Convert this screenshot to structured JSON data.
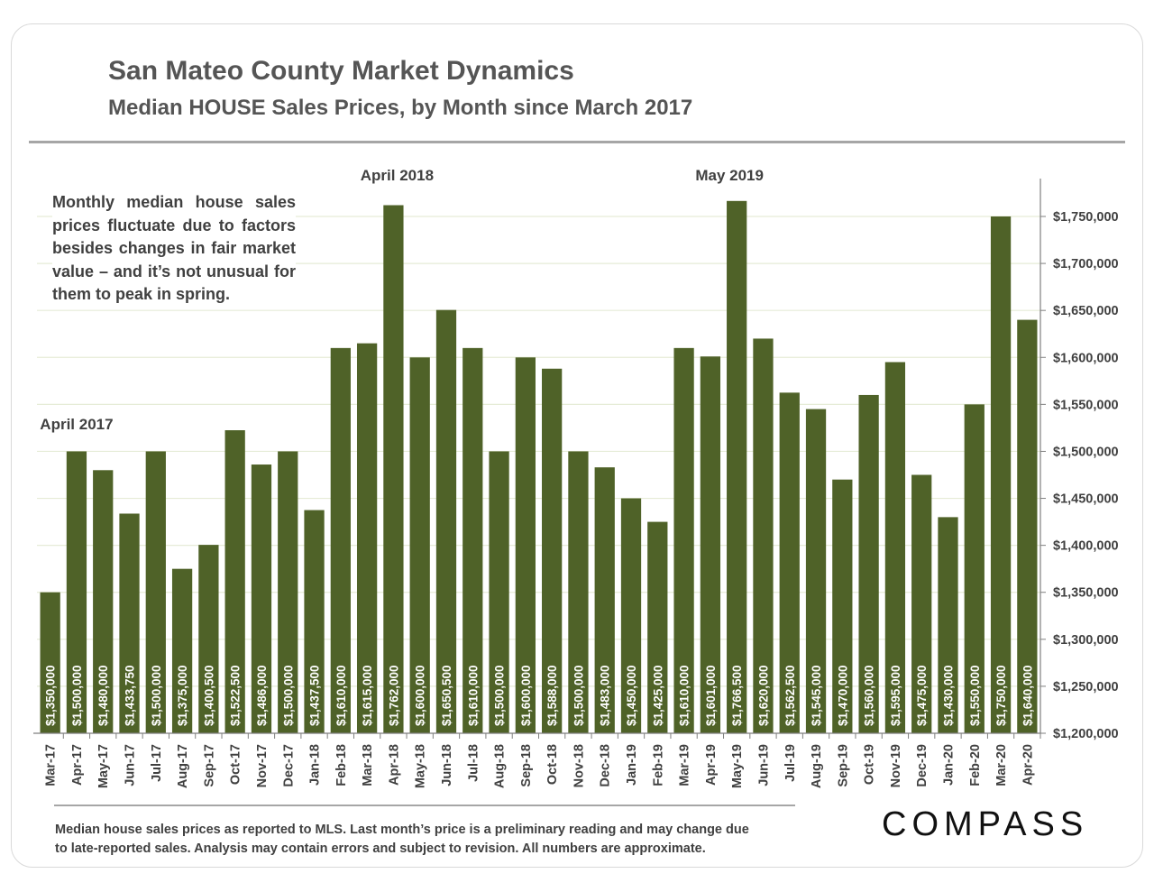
{
  "header": {
    "title": "San Mateo County Market Dynamics",
    "subtitle": "Median HOUSE Sales Prices, by Month since March 2017"
  },
  "note": "Monthly median house sales prices fluctuate due to factors besides changes in fair market value – and it’s not unusual for them to peak in spring.",
  "footnote": {
    "line1": "Median house sales prices as reported to MLS. Last month’s price is a preliminary reading and may change due",
    "line2": "to late-reported sales. Analysis may contain errors and subject to revision. All numbers are approximate."
  },
  "logo": "COMPASS",
  "colors": {
    "bar": "#4f6228",
    "text": "#404040",
    "grid": "#e6ecd7"
  },
  "chart_data": {
    "type": "bar",
    "title": "Median HOUSE Sales Prices, by Month since March 2017",
    "categories": [
      "Mar-17",
      "Apr-17",
      "May-17",
      "Jun-17",
      "Jul-17",
      "Aug-17",
      "Sep-17",
      "Oct-17",
      "Nov-17",
      "Dec-17",
      "Jan-18",
      "Feb-18",
      "Mar-18",
      "Apr-18",
      "May-18",
      "Jun-18",
      "Jul-18",
      "Aug-18",
      "Sep-18",
      "Oct-18",
      "Nov-18",
      "Dec-18",
      "Jan-19",
      "Feb-19",
      "Mar-19",
      "Apr-19",
      "May-19",
      "Jun-19",
      "Jul-19",
      "Aug-19",
      "Sep-19",
      "Oct-19",
      "Nov-19",
      "Dec-19",
      "Jan-20",
      "Feb-20",
      "Mar-20",
      "Apr-20"
    ],
    "values": [
      1350000,
      1500000,
      1480000,
      1433750,
      1500000,
      1375000,
      1400500,
      1522500,
      1486000,
      1500000,
      1437500,
      1610000,
      1615000,
      1762000,
      1600000,
      1650500,
      1610000,
      1500000,
      1600000,
      1588000,
      1500000,
      1483000,
      1450000,
      1425000,
      1610000,
      1601000,
      1766500,
      1620000,
      1562500,
      1545000,
      1470000,
      1560000,
      1595000,
      1475000,
      1430000,
      1550000,
      1750000,
      1640000
    ],
    "data_labels": [
      "$1,350,000",
      "$1,500,000",
      "$1,480,000",
      "$1,433,750",
      "$1,500,000",
      "$1,375,000",
      "$1,400,500",
      "$1,522,500",
      "$1,486,000",
      "$1,500,000",
      "$1,437,500",
      "$1,610,000",
      "$1,615,000",
      "$1,762,000",
      "$1,600,000",
      "$1,650,500",
      "$1,610,000",
      "$1,500,000",
      "$1,600,000",
      "$1,588,000",
      "$1,500,000",
      "$1,483,000",
      "$1,450,000",
      "$1,425,000",
      "$1,610,000",
      "$1,601,000",
      "$1,766,500",
      "$1,620,000",
      "$1,562,500",
      "$1,545,000",
      "$1,470,000",
      "$1,560,000",
      "$1,595,000",
      "$1,475,000",
      "$1,430,000",
      "$1,550,000",
      "$1,750,000",
      "$1,640,000"
    ],
    "ylim": [
      1200000,
      1790000
    ],
    "yticks": [
      1200000,
      1250000,
      1300000,
      1350000,
      1400000,
      1450000,
      1500000,
      1550000,
      1600000,
      1650000,
      1700000,
      1750000
    ],
    "ytick_labels": [
      "$1,200,000",
      "$1,250,000",
      "$1,300,000",
      "$1,350,000",
      "$1,400,000",
      "$1,450,000",
      "$1,500,000",
      "$1,550,000",
      "$1,600,000",
      "$1,650,000",
      "$1,700,000",
      "$1,750,000"
    ],
    "y_axis_side": "right",
    "annotations": [
      {
        "text": "April 2017",
        "category": "Apr-17"
      },
      {
        "text": "April 2018",
        "category": "Apr-18"
      },
      {
        "text": "May 2019",
        "category": "May-19"
      }
    ]
  }
}
